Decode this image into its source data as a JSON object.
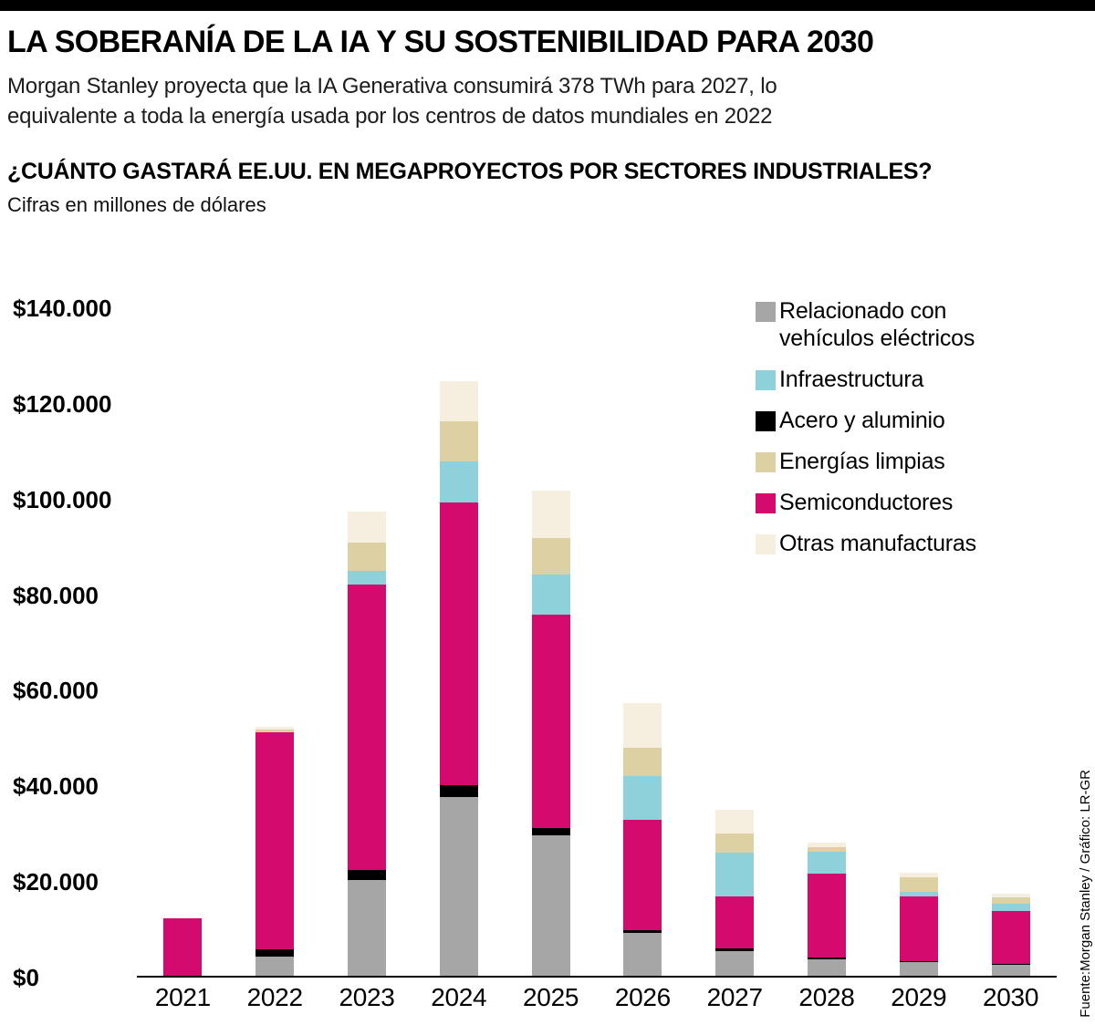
{
  "page": {
    "title": "LA SOBERANÍA DE LA IA Y SU SOSTENIBILIDAD PARA 2030",
    "subtitle_line1": "Morgan Stanley proyecta que la IA Generativa consumirá 378 TWh para 2027, lo",
    "subtitle_line2": "equivalente a toda la energía usada por los centros de datos mundiales en 2022",
    "source": "Fuente:Morgan Stanley / Gráfico: LR-GR"
  },
  "colors": {
    "accent_rule": "#000000",
    "ev_gray": "#a6a6a6",
    "infrastructure_blue": "#8fd1da",
    "steel_black": "#000000",
    "clean_energy_tan": "#ddd0a2",
    "semiconductors_magenta": "#d50a6e",
    "other_manufacturing_cream": "#f6efe0"
  },
  "chart_data": {
    "type": "bar",
    "stacked": true,
    "title": "¿CUÁNTO GASTARÁ EE.UU. EN MEGAPROYECTOS POR SECTORES INDUSTRIALES?",
    "units": "Cifras en millones de dólares",
    "xlabel": "",
    "ylabel": "Millones de dólares",
    "ylim": [
      0,
      140000
    ],
    "grid": false,
    "legend_position": "top-right",
    "categories": [
      "2021",
      "2022",
      "2023",
      "2024",
      "2025",
      "2026",
      "2027",
      "2028",
      "2029",
      "2030"
    ],
    "y_tick_labels": [
      "$140.000",
      "$120.000",
      "$100.000",
      "$80.000",
      "$60.000",
      "$40.000",
      "$20.000",
      "$0"
    ],
    "series": [
      {
        "name": "Relacionado con vehículos eléctricos",
        "color": "#a6a6a6",
        "values": [
          0,
          4000,
          20000,
          37500,
          29500,
          9000,
          5200,
          3500,
          2900,
          2300
        ]
      },
      {
        "name": "Acero y aluminio",
        "color": "#000000",
        "values": [
          0,
          1500,
          2100,
          2500,
          1500,
          600,
          600,
          400,
          200,
          200
        ]
      },
      {
        "name": "Semiconductores",
        "color": "#d50a6e",
        "values": [
          12000,
          45500,
          59900,
          59300,
          44700,
          23200,
          10900,
          17500,
          13500,
          11000
        ]
      },
      {
        "name": "Infraestructura",
        "color": "#8fd1da",
        "values": [
          0,
          0,
          2900,
          8600,
          8400,
          9000,
          9200,
          4600,
          1000,
          1700
        ]
      },
      {
        "name": "Energías limpias",
        "color": "#ddd0a2",
        "values": [
          0,
          600,
          6000,
          8400,
          7700,
          6100,
          4000,
          1000,
          3000,
          1200
        ]
      },
      {
        "name": "Otras manufacturas",
        "color": "#f6efe0",
        "values": [
          0,
          600,
          6500,
          8400,
          10000,
          9300,
          5000,
          1000,
          1000,
          800
        ]
      }
    ],
    "legend": [
      {
        "label": "Relacionado con vehículos eléctricos",
        "color": "#a6a6a6"
      },
      {
        "label": "Infraestructura",
        "color": "#8fd1da"
      },
      {
        "label": "Acero y aluminio",
        "color": "#000000"
      },
      {
        "label": "Energías limpias",
        "color": "#ddd0a2"
      },
      {
        "label": "Semiconductores",
        "color": "#d50a6e"
      },
      {
        "label": "Otras manufacturas",
        "color": "#f6efe0"
      }
    ]
  }
}
